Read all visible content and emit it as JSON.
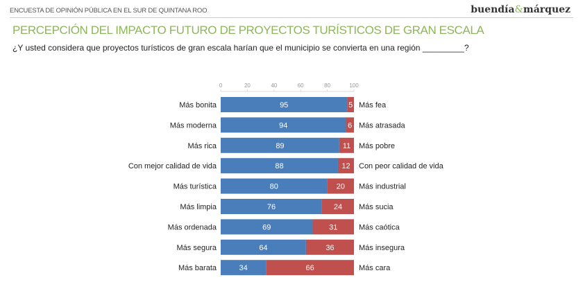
{
  "header": {
    "survey": "ENCUESTA DE OPINIÓN PÚBLICA EN EL SUR DE QUINTANA ROO",
    "logo_left": "buendía",
    "logo_amp": "&",
    "logo_right": "márquez"
  },
  "title": "PERCEPCIÓN DEL IMPACTO FUTURO DE PROYECTOS TURÍSTICOS DE GRAN ESCALA",
  "question": "¿Y usted considera que proyectos turísticos de gran escala harían que el municipio se convierta en una región _________?",
  "colors": {
    "positive": "#4a7ebb",
    "negative": "#c0504d",
    "accent": "#8db65a"
  },
  "chart_data": {
    "type": "bar",
    "orientation": "horizontal",
    "stacked": true,
    "xlim": [
      0,
      100
    ],
    "xticks": [
      0,
      20,
      40,
      60,
      80,
      100
    ],
    "axis_position": "top",
    "grid": false,
    "categories": [
      "Más bonita",
      "Más moderna",
      "Más rica",
      "Con mejor calidad de vida",
      "Más turística",
      "Más limpia",
      "Más ordenada",
      "Más segura",
      "Más barata"
    ],
    "opposite_labels": [
      "Más fea",
      "Más atrasada",
      "Más pobre",
      "Con peor calidad de vida",
      "Más industrial",
      "Más sucia",
      "Más caótica",
      "Más insegura",
      "Más cara"
    ],
    "series": [
      {
        "values": [
          95,
          94,
          89,
          88,
          80,
          76,
          69,
          64,
          34
        ]
      },
      {
        "values": [
          5,
          6,
          11,
          12,
          20,
          24,
          31,
          36,
          66
        ]
      }
    ]
  }
}
